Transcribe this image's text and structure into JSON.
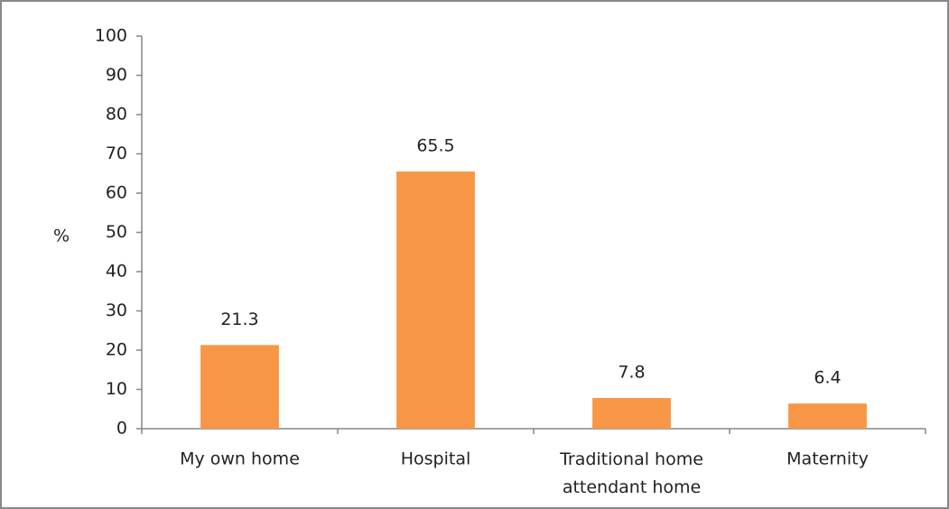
{
  "chart_data": {
    "type": "bar",
    "ylabel": "%",
    "categories": [
      "My own home",
      "Hospital",
      "Traditional home attendant home",
      "Maternity"
    ],
    "values": [
      21.3,
      65.5,
      7.8,
      6.4
    ],
    "color": "#f79646",
    "ylim": [
      0,
      100
    ],
    "yticks": [
      0,
      10,
      20,
      30,
      40,
      50,
      60,
      70,
      80,
      90,
      100
    ],
    "grid": false,
    "data_labels": true
  }
}
